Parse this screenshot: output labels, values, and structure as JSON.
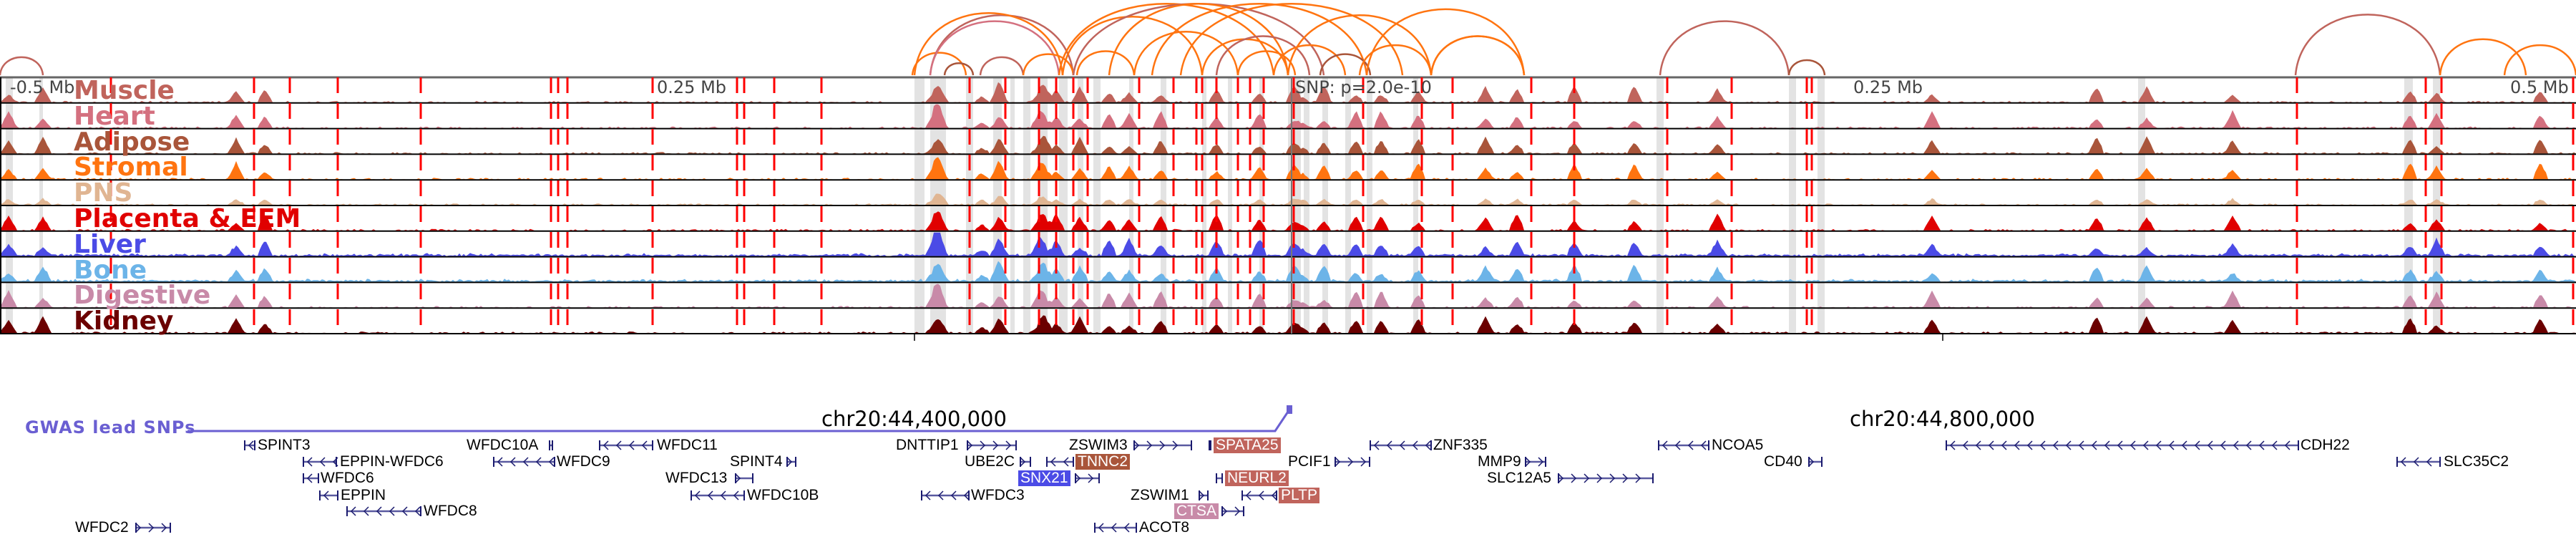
{
  "axis": {
    "left": "-0.5 Mb",
    "mid_left": "0.25 Mb",
    "snp": "SNP: p=2.0e-10",
    "mid_right": "0.25 Mb",
    "right": "0.5 Mb"
  },
  "tracks": [
    {
      "label": "Muscle",
      "color": "#c0645c"
    },
    {
      "label": "Heart",
      "color": "#d4707f"
    },
    {
      "label": "Adipose",
      "color": "#a9553a"
    },
    {
      "label": "Stromal",
      "color": "#ff7410"
    },
    {
      "label": "PNS",
      "color": "#e0b592"
    },
    {
      "label": "Placenta & EEM",
      "color": "#e00000"
    },
    {
      "label": "Liver",
      "color": "#4b4be6"
    },
    {
      "label": "Bone",
      "color": "#6cb4e8"
    },
    {
      "label": "Digestive",
      "color": "#c88aa8"
    },
    {
      "label": "Kidney",
      "color": "#6b0000"
    }
  ],
  "gwas": {
    "label": "GWAS lead SNPs",
    "color": "#6a5fd2"
  },
  "coords": [
    "chr20:44,400,000",
    "chr20:44,800,000"
  ],
  "genes": [
    {
      "name": "SPINT3",
      "strand": "-"
    },
    {
      "name": "WFDC10A",
      "strand": "+"
    },
    {
      "name": "WFDC11",
      "strand": "-"
    },
    {
      "name": "DNTTIP1",
      "strand": "+"
    },
    {
      "name": "ZSWIM3",
      "strand": "+"
    },
    {
      "name": "SPATA25",
      "strand": "+",
      "highlight": "#c0645c"
    },
    {
      "name": "ZNF335",
      "strand": "-"
    },
    {
      "name": "NCOA5",
      "strand": "-"
    },
    {
      "name": "CDH22",
      "strand": "-"
    },
    {
      "name": "EPPIN-WFDC6",
      "strand": "-"
    },
    {
      "name": "WFDC9",
      "strand": "-"
    },
    {
      "name": "SPINT4",
      "strand": "+"
    },
    {
      "name": "UBE2C",
      "strand": "+"
    },
    {
      "name": "TNNC2",
      "strand": "-",
      "highlight": "#a9553a"
    },
    {
      "name": "PCIF1",
      "strand": "+"
    },
    {
      "name": "MMP9",
      "strand": "+"
    },
    {
      "name": "CD40",
      "strand": "+"
    },
    {
      "name": "SLC35C2",
      "strand": "-"
    },
    {
      "name": "WFDC6",
      "strand": "-"
    },
    {
      "name": "WFDC13",
      "strand": "+"
    },
    {
      "name": "SNX21",
      "strand": "+",
      "highlight": "#4b4be6"
    },
    {
      "name": "NEURL2",
      "strand": "-",
      "highlight": "#c0645c"
    },
    {
      "name": "SLC12A5",
      "strand": "+"
    },
    {
      "name": "EPPIN",
      "strand": "-"
    },
    {
      "name": "WFDC10B",
      "strand": "-"
    },
    {
      "name": "WFDC3",
      "strand": "-"
    },
    {
      "name": "ZSWIM1",
      "strand": "+"
    },
    {
      "name": "PLTP",
      "strand": "-",
      "highlight": "#c0645c"
    },
    {
      "name": "WFDC8",
      "strand": "-"
    },
    {
      "name": "CTSA",
      "strand": "+",
      "highlight": "#c88aa8"
    },
    {
      "name": "WFDC2",
      "strand": "+"
    },
    {
      "name": "ACOT8",
      "strand": "-"
    }
  ]
}
